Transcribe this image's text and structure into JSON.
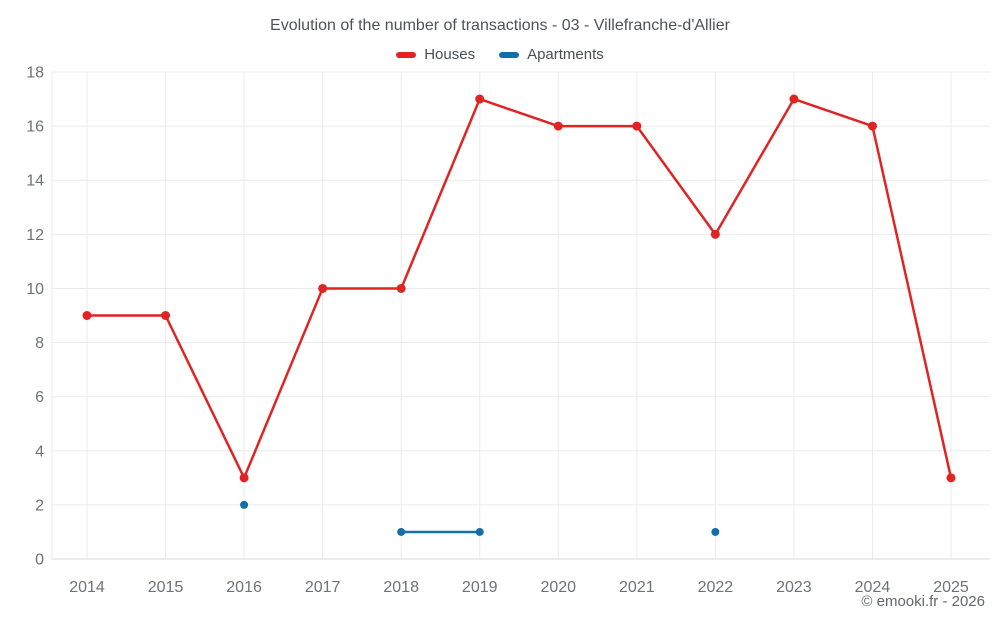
{
  "chart": {
    "title": "Evolution of the number of transactions - 03 - Villefranche-d'Allier",
    "copyright": "© emooki.fr - 2026"
  },
  "chart_data": {
    "type": "line",
    "title": "Evolution of the number of transactions - 03 - Villefranche-d'Allier",
    "categories": [
      "2014",
      "2015",
      "2016",
      "2017",
      "2018",
      "2019",
      "2020",
      "2021",
      "2022",
      "2023",
      "2024",
      "2025"
    ],
    "series": [
      {
        "name": "Houses",
        "color": "#e02424",
        "marker_radius": 4.5,
        "values": [
          9,
          9,
          3,
          10,
          10,
          17,
          16,
          16,
          12,
          17,
          16,
          3
        ]
      },
      {
        "name": "Apartments",
        "color": "#1270a8",
        "marker_radius": 4,
        "values": [
          null,
          null,
          2,
          null,
          1,
          1,
          null,
          null,
          1,
          null,
          null,
          null
        ]
      }
    ],
    "xlabel": "",
    "ylabel": "",
    "ylim": [
      0,
      18
    ],
    "y_tick_step": 2,
    "y_ticks": [
      0,
      2,
      4,
      6,
      8,
      10,
      12,
      14,
      16,
      18
    ],
    "grid": true,
    "legend_position": "top"
  },
  "colors": {
    "background": "#ffffff",
    "grid": "#ebebeb",
    "axis": "#d8d8d8",
    "tick_label": "#6f7276",
    "title": "#4f5357",
    "legend_label": "#4a4e52",
    "copyright": "#63676b"
  }
}
